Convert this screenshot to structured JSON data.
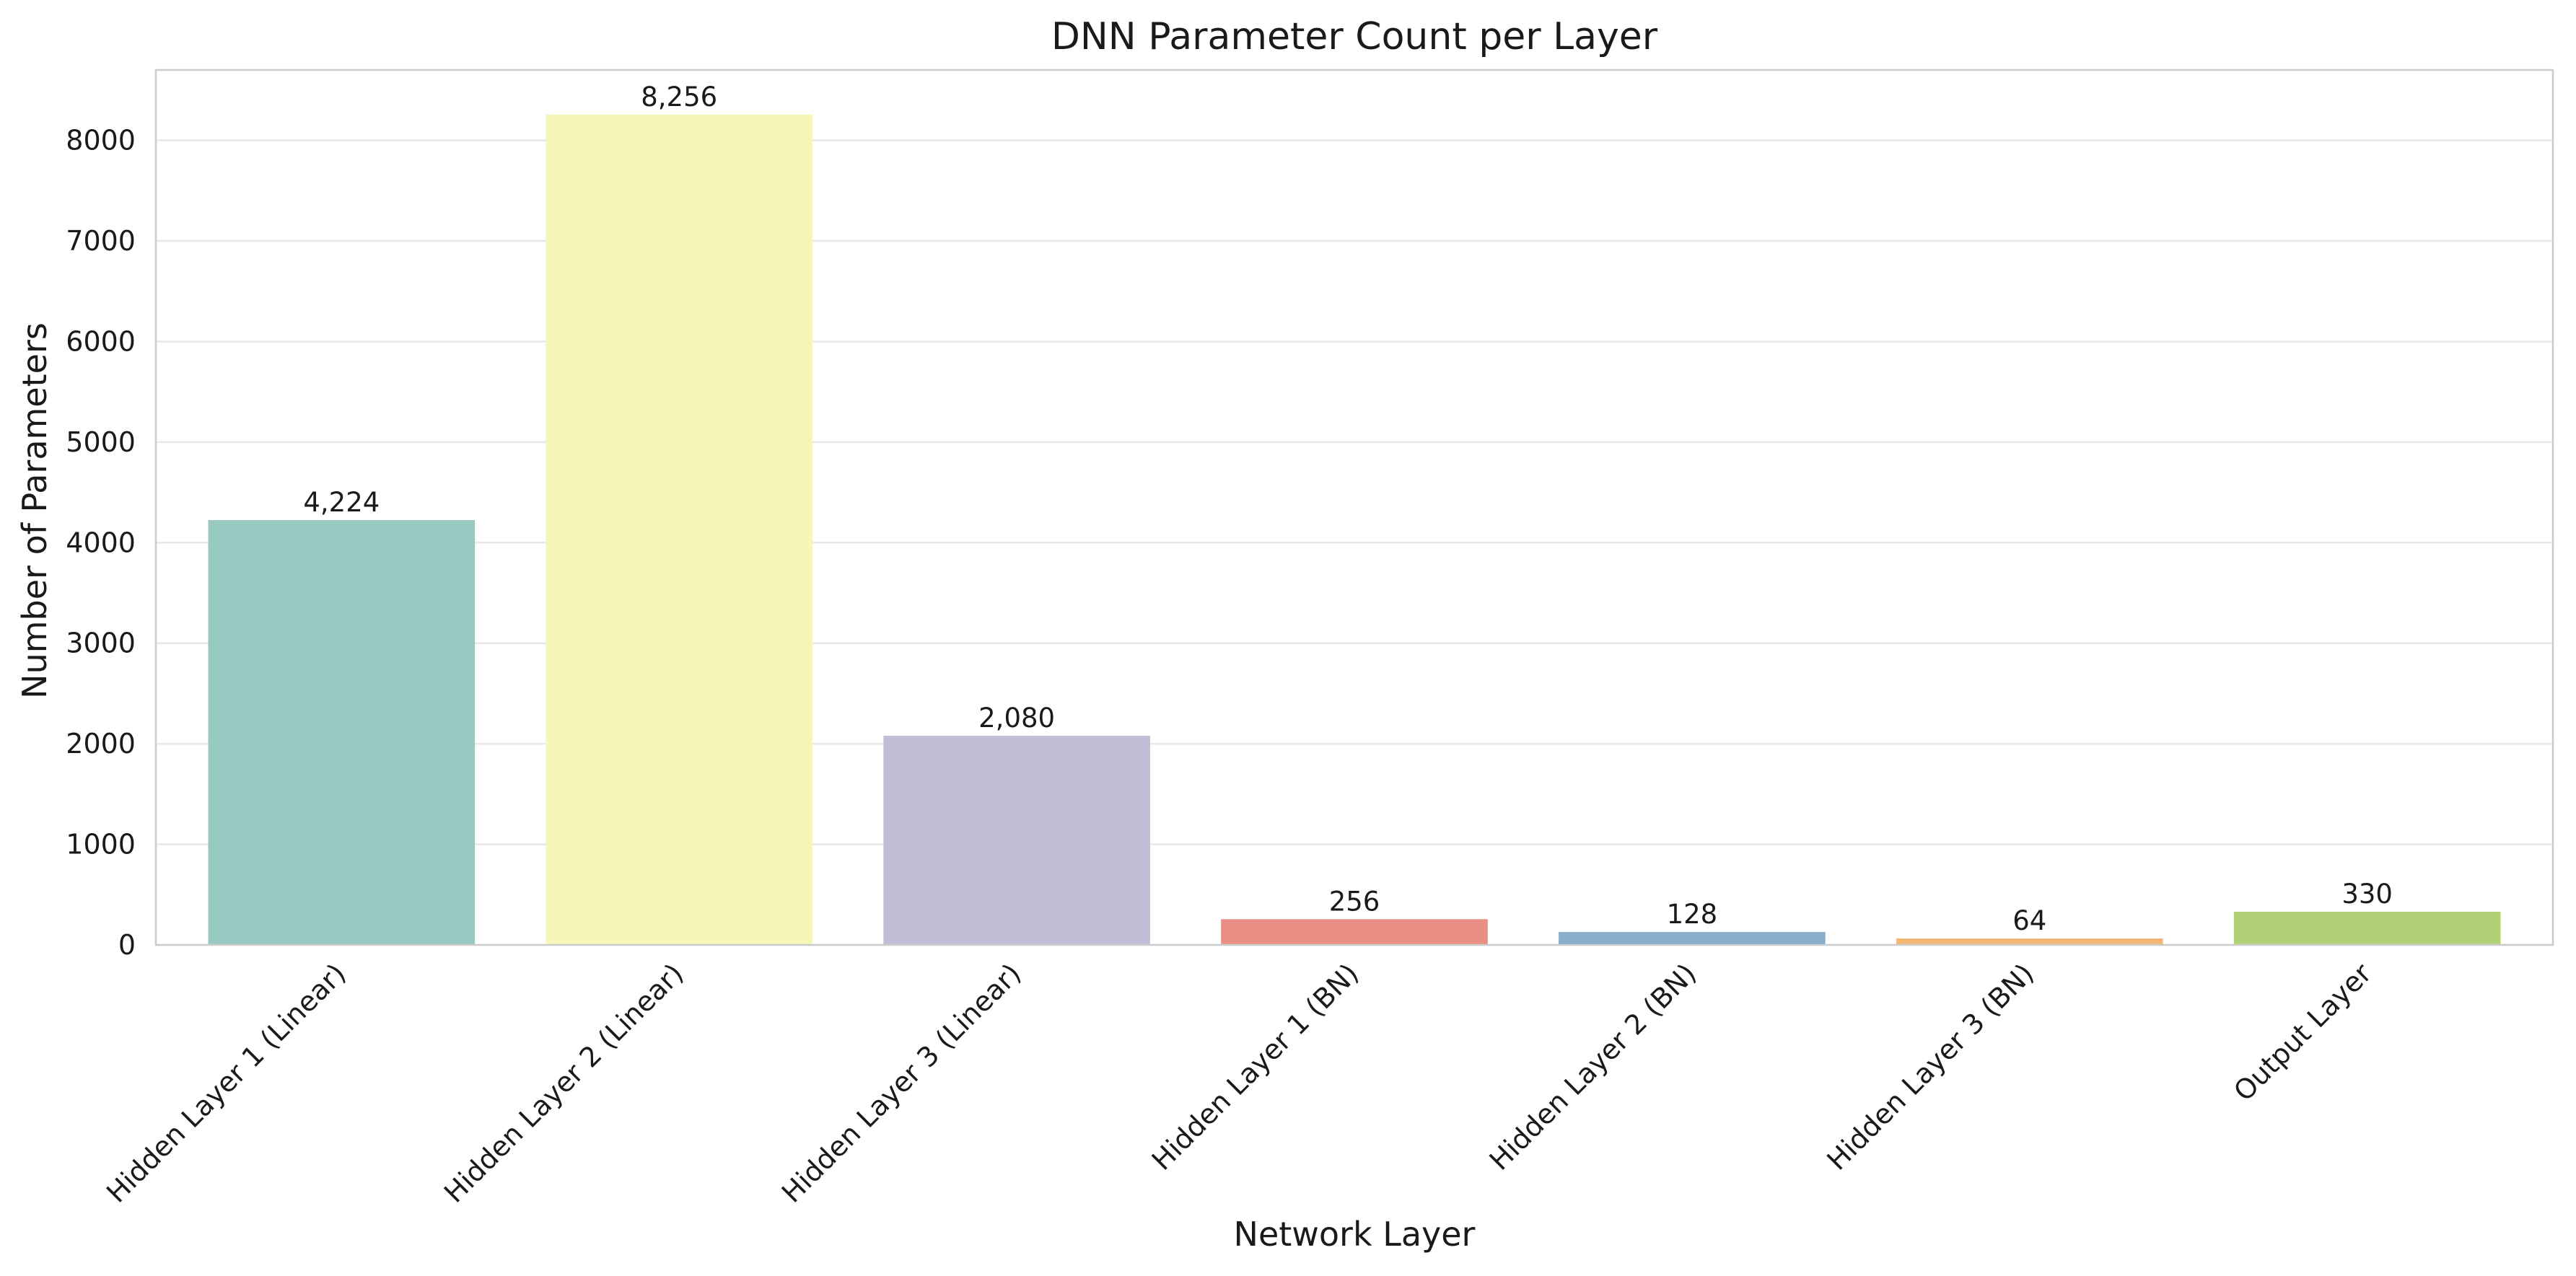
{
  "chart_data": {
    "type": "bar",
    "title": "DNN Parameter Count per Layer",
    "xlabel": "Network Layer",
    "ylabel": "Number of Parameters",
    "categories": [
      "Hidden Layer 1 (Linear)",
      "Hidden Layer 2 (Linear)",
      "Hidden Layer 3 (Linear)",
      "Hidden Layer 1 (BN)",
      "Hidden Layer 2 (BN)",
      "Hidden Layer 3 (BN)",
      "Output Layer"
    ],
    "values": [
      4224,
      8256,
      2080,
      256,
      128,
      64,
      330
    ],
    "value_labels": [
      "4,224",
      "8,256",
      "2,080",
      "256",
      "128",
      "64",
      "330"
    ],
    "colors": [
      "#98c9c1",
      "#f6f6b9",
      "#c1bed6",
      "#ea8f85",
      "#89aecb",
      "#f3b675",
      "#b1d176"
    ],
    "ylim": [
      0,
      8700
    ],
    "yticks": [
      0,
      1000,
      2000,
      3000,
      4000,
      5000,
      6000,
      7000,
      8000
    ],
    "grid": true,
    "legend": "none"
  }
}
